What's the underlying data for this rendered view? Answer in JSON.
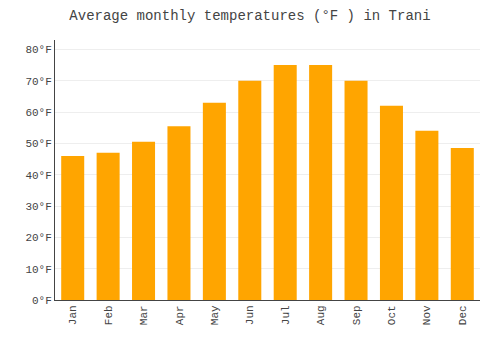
{
  "chart_data": {
    "type": "bar",
    "title": "Average monthly temperatures (°F ) in Trani",
    "categories": [
      "Jan",
      "Feb",
      "Mar",
      "Apr",
      "May",
      "Jun",
      "Jul",
      "Aug",
      "Sep",
      "Oct",
      "Nov",
      "Dec"
    ],
    "values": [
      46,
      47,
      50.5,
      55.5,
      63,
      70,
      75,
      75,
      70,
      62,
      54,
      48.5
    ],
    "color": "#FFA500",
    "ylim": [
      0,
      83
    ],
    "yticks": [
      {
        "value": 0,
        "label": "0°F"
      },
      {
        "value": 10,
        "label": "10°F"
      },
      {
        "value": 20,
        "label": "20°F"
      },
      {
        "value": 30,
        "label": "30°F"
      },
      {
        "value": 40,
        "label": "40°F"
      },
      {
        "value": 50,
        "label": "50°F"
      },
      {
        "value": 60,
        "label": "60°F"
      },
      {
        "value": 70,
        "label": "70°F"
      },
      {
        "value": 80,
        "label": "80°F"
      }
    ],
    "grid": true
  }
}
